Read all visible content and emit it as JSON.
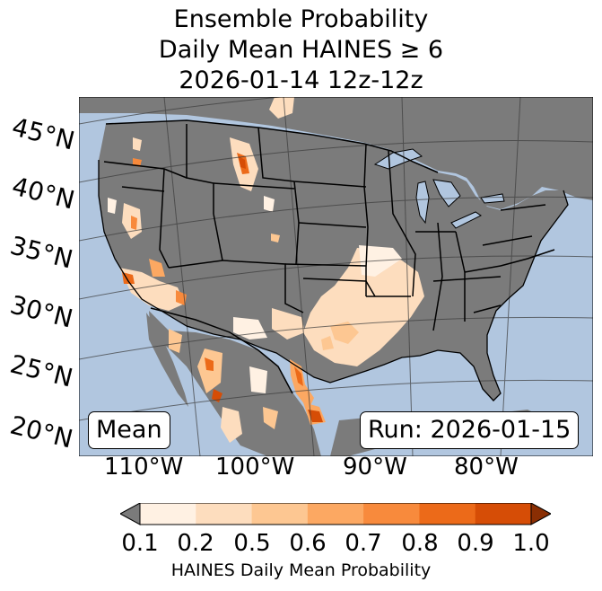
{
  "title": {
    "line1": "Ensemble Probability",
    "line2": "Daily Mean HAINES ≥ 6",
    "line3": "2026-01-14 12z-12z"
  },
  "lat_labels": [
    "45°N",
    "40°N",
    "35°N",
    "30°N",
    "25°N",
    "20°N"
  ],
  "lon_labels": [
    "110°W",
    "100°W",
    "90°W",
    "80°W"
  ],
  "stat_label": "Mean",
  "run_label": "Run: 2026-01-15",
  "colorbar": {
    "ticks": [
      "0.1",
      "0.2",
      "0.5",
      "0.6",
      "0.7",
      "0.8",
      "0.9",
      "1.0"
    ],
    "colors": [
      "#fff1e3",
      "#fdddbe",
      "#fdc792",
      "#fca862",
      "#f88a3c",
      "#ec6a19",
      "#d64d06"
    ],
    "under_color": "#7b7b7b",
    "over_color": "#8a2e03",
    "label": "HAINES Daily Mean Probability"
  },
  "colors": {
    "ocean": "#b1c6df",
    "land": "#7b7b7b",
    "border": "#000000"
  }
}
